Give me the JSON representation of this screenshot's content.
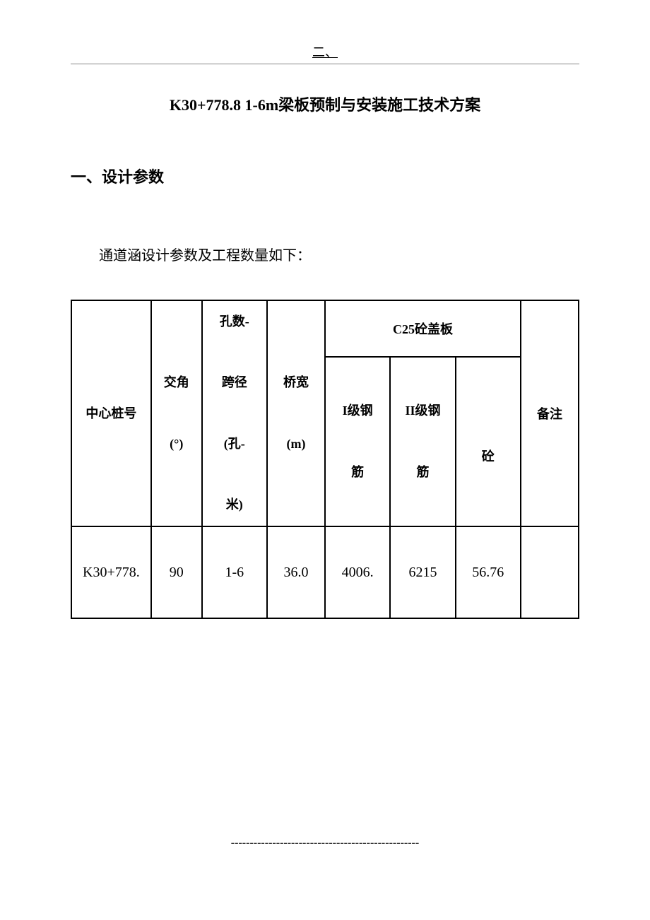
{
  "page": {
    "top_mark": "二、",
    "title": "K30+778.8  1-6m梁板预制与安装施工技术方案",
    "section_heading": "一、设计参数",
    "intro_text": "通道涵设计参数及工程数量如下：",
    "footer_dashes": "--------------------------------------------------"
  },
  "table": {
    "headers": {
      "center_pile": "中心桩号",
      "angle": "交角",
      "angle_unit": "(°)",
      "holes_span": "孔数-",
      "span_label": "跨径",
      "span_unit": "(孔-",
      "span_unit2": "米)",
      "bridge_width": "桥宽",
      "bridge_width_unit": "(m)",
      "c25_cover": "C25砼盖板",
      "steel_1": "I级钢",
      "steel_1b": "筋",
      "steel_2": "II级钢",
      "steel_2b": "筋",
      "concrete": "砼",
      "remark": "备注"
    },
    "row": {
      "center_pile": "K30+778.",
      "angle": "90",
      "holes_span": "1-6",
      "bridge_width": "36.0",
      "steel_1": "4006.",
      "steel_2": "6215",
      "concrete": "56.76",
      "remark": ""
    },
    "styling": {
      "border_color": "#000000",
      "border_width": 2,
      "font_size_header": 18,
      "font_size_data": 20,
      "background_color": "#ffffff",
      "text_color": "#000000"
    }
  }
}
